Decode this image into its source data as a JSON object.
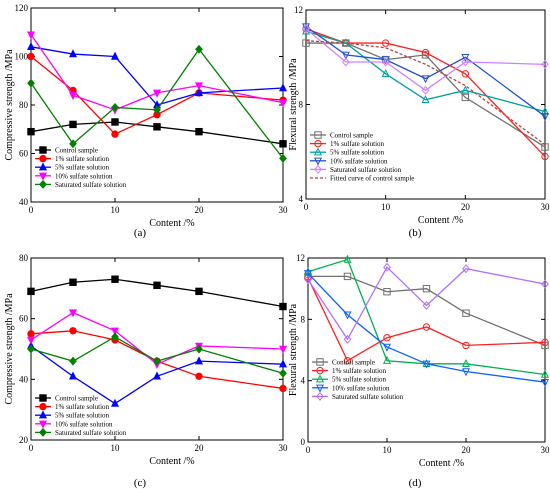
{
  "colors": {
    "control": "#000000",
    "s1": "#ff0000",
    "s5": "#0000ff",
    "s10": "#ff00ff",
    "sat": "#008000",
    "b_control": "#707070",
    "b_s1": "#ff2020",
    "b_s5": "#00a0a0",
    "b_s10": "#2050d0",
    "b_sat": "#d080ff",
    "b_fit": "#c04040",
    "d_control": "#707070",
    "d_s1": "#ff2020",
    "d_s5": "#00b050",
    "d_s10": "#1060ff",
    "d_sat": "#b070ff"
  },
  "chart_data": [
    {
      "panel": "(a)",
      "type": "line",
      "ylabel": "Compressive strength /MPa",
      "xlabel": "Content  /%",
      "xlim": [
        0,
        30
      ],
      "ylim": [
        40,
        120
      ],
      "xticks": [
        "0",
        "10",
        "20",
        "30"
      ],
      "yticks": [
        "40",
        "60",
        "80",
        "100",
        "120"
      ],
      "legend_position": "bottom-left",
      "x": [
        0,
        5,
        10,
        15,
        20,
        30
      ],
      "series": [
        {
          "name": "Control sample",
          "color_key": "control",
          "marker": "square",
          "values": [
            69,
            72,
            73,
            71,
            69,
            64
          ]
        },
        {
          "name": "1% sulfate solution",
          "color_key": "s1",
          "marker": "circle",
          "values": [
            100,
            86,
            68,
            76,
            85,
            82
          ]
        },
        {
          "name": "5% sulfate solution",
          "color_key": "s5",
          "marker": "triangle-up",
          "values": [
            104,
            101,
            100,
            80,
            85,
            87
          ]
        },
        {
          "name": "10% sulfate solution",
          "color_key": "s10",
          "marker": "triangle-down",
          "values": [
            109,
            84,
            78,
            85,
            88,
            81
          ]
        },
        {
          "name": "Saturated sulfate solution",
          "color_key": "sat",
          "marker": "diamond",
          "values": [
            89,
            64,
            79,
            78,
            103,
            58
          ]
        }
      ]
    },
    {
      "panel": "(b)",
      "type": "line",
      "ylabel": "Flexural strength /MPa",
      "xlabel": "Content  /%",
      "xlim": [
        0,
        30
      ],
      "ylim": [
        4,
        12
      ],
      "xticks": [
        "0",
        "10",
        "20",
        "30"
      ],
      "yticks": [
        "4",
        "8",
        "12"
      ],
      "legend_position": "bottom-left",
      "x": [
        0,
        5,
        10,
        15,
        20,
        30
      ],
      "series": [
        {
          "name": "Control sample",
          "color_key": "b_control",
          "marker": "square-open",
          "values": [
            10.6,
            10.6,
            9.9,
            10.1,
            8.3,
            6.2
          ]
        },
        {
          "name": "1% sulfate solution",
          "color_key": "b_s1",
          "marker": "circle-open",
          "values": [
            11.2,
            10.6,
            10.6,
            10.2,
            9.3,
            5.8
          ]
        },
        {
          "name": "5% sulfate solution",
          "color_key": "b_s5",
          "marker": "triangle-up-open",
          "values": [
            11.1,
            10.6,
            9.3,
            8.2,
            8.6,
            7.7
          ]
        },
        {
          "name": "10% sulfate solution",
          "color_key": "b_s10",
          "marker": "triangle-down-open",
          "values": [
            11.3,
            10.1,
            9.9,
            9.1,
            10.0,
            7.5
          ]
        },
        {
          "name": "Saturated sulfate solution",
          "color_key": "b_sat",
          "marker": "diamond-open",
          "values": [
            11.2,
            9.8,
            9.8,
            8.6,
            9.8,
            9.7
          ]
        },
        {
          "name": "Fitted curve of  control sample",
          "color_key": "b_fit",
          "marker": "none",
          "dashed": true,
          "values": [
            10.7,
            10.6,
            10.4,
            9.7,
            8.8,
            6.3
          ]
        }
      ]
    },
    {
      "panel": "(c)",
      "type": "line",
      "ylabel": "Compressive strength /MPa",
      "xlabel": "Content  /%",
      "xlim": [
        0,
        30
      ],
      "ylim": [
        20,
        80
      ],
      "xticks": [
        "0",
        "10",
        "20",
        "30"
      ],
      "yticks": [
        "20",
        "40",
        "60",
        "80"
      ],
      "legend_position": "bottom-left",
      "x": [
        0,
        5,
        10,
        15,
        20,
        30
      ],
      "series": [
        {
          "name": "Control sample",
          "color_key": "control",
          "marker": "square",
          "values": [
            69,
            72,
            73,
            71,
            69,
            64
          ]
        },
        {
          "name": "1% sulfate solution",
          "color_key": "s1",
          "marker": "circle",
          "values": [
            55,
            56,
            53,
            46,
            41,
            37
          ]
        },
        {
          "name": "5% sulfate solution",
          "color_key": "s5",
          "marker": "triangle-up",
          "values": [
            51,
            41,
            32,
            41,
            46,
            45
          ]
        },
        {
          "name": "10% sulfate solution",
          "color_key": "s10",
          "marker": "triangle-down",
          "values": [
            53,
            62,
            56,
            45,
            51,
            50
          ]
        },
        {
          "name": "Saturated sulfate solution",
          "color_key": "sat",
          "marker": "diamond",
          "values": [
            50,
            46,
            54,
            46,
            50,
            42
          ]
        }
      ]
    },
    {
      "panel": "(d)",
      "type": "line",
      "ylabel": "Flexural strength /MPa",
      "xlabel": "Content  /%",
      "xlim": [
        0,
        30
      ],
      "ylim": [
        0,
        12
      ],
      "xticks": [
        "0",
        "10",
        "20",
        "30"
      ],
      "yticks": [
        "0",
        "4",
        "8",
        "12"
      ],
      "legend_position": "bottom-left",
      "x": [
        0,
        5,
        10,
        15,
        20,
        30
      ],
      "series": [
        {
          "name": "Control sample",
          "color_key": "d_control",
          "marker": "square-open",
          "values": [
            10.8,
            10.8,
            9.8,
            10.0,
            8.4,
            6.3
          ]
        },
        {
          "name": "1% sulfate solution",
          "color_key": "d_s1",
          "marker": "circle-open",
          "values": [
            10.7,
            5.3,
            6.8,
            7.5,
            6.3,
            6.5
          ]
        },
        {
          "name": "5% sulfate solution",
          "color_key": "d_s5",
          "marker": "triangle-up-open",
          "values": [
            11.1,
            11.9,
            5.3,
            5.1,
            5.1,
            4.4
          ]
        },
        {
          "name": "10% sulfate solution",
          "color_key": "d_s10",
          "marker": "triangle-down-open",
          "values": [
            11.0,
            8.3,
            6.2,
            5.1,
            4.6,
            3.9
          ]
        },
        {
          "name": "Saturated sulfate solution",
          "color_key": "d_sat",
          "marker": "diamond-open",
          "values": [
            10.6,
            6.7,
            11.4,
            8.9,
            11.3,
            10.3
          ]
        }
      ]
    }
  ]
}
